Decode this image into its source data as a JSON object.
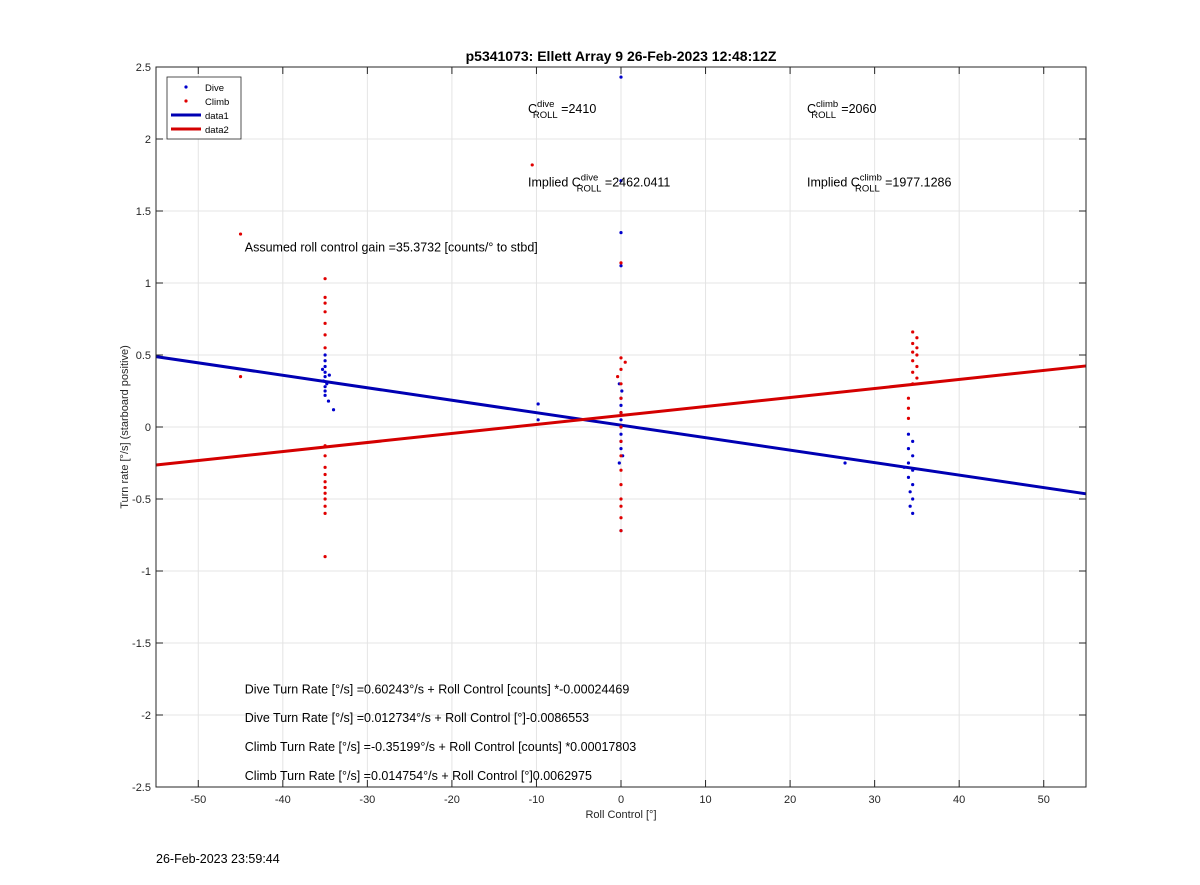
{
  "footer_timestamp": "26-Feb-2023 23:59:44",
  "chart_data": {
    "type": "scatter",
    "title": "p5341073: Ellett Array 9 26-Feb-2023 12:48:12Z",
    "xlabel": "Roll Control [°]",
    "ylabel": "Turn rate [°/s] (starboard positive)",
    "xlim": [
      -55,
      55
    ],
    "ylim": [
      -2.5,
      2.5
    ],
    "xticks": [
      -50,
      -40,
      -30,
      -20,
      -10,
      0,
      10,
      20,
      30,
      40,
      50
    ],
    "yticks": [
      -2.5,
      -2,
      -1.5,
      -1,
      -0.5,
      0,
      0.5,
      1,
      1.5,
      2,
      2.5
    ],
    "grid": true,
    "legend_position": "top-left",
    "legend": [
      {
        "label": "Dive",
        "kind": "marker",
        "color": "#0000cc"
      },
      {
        "label": "Climb",
        "kind": "marker",
        "color": "#e00000"
      },
      {
        "label": "data1",
        "kind": "line",
        "color": "#0000b3"
      },
      {
        "label": "data2",
        "kind": "line",
        "color": "#d40000"
      }
    ],
    "series": [
      {
        "name": "Dive",
        "kind": "scatter",
        "color": "#0000cc",
        "points": [
          [
            -35,
            0.5
          ],
          [
            -35,
            0.46
          ],
          [
            -35,
            0.42
          ],
          [
            -35,
            0.38
          ],
          [
            -35,
            0.35
          ],
          [
            -35.2,
            0.32
          ],
          [
            -34.8,
            0.3
          ],
          [
            -35,
            0.28
          ],
          [
            -35,
            0.25
          ],
          [
            -35,
            0.22
          ],
          [
            -34.6,
            0.18
          ],
          [
            -34,
            0.12
          ],
          [
            -35.3,
            0.4
          ],
          [
            -34.5,
            0.36
          ],
          [
            -9.8,
            0.16
          ],
          [
            -9.8,
            0.05
          ],
          [
            0,
            2.43
          ],
          [
            0,
            1.71
          ],
          [
            0,
            1.35
          ],
          [
            0,
            1.12
          ],
          [
            0,
            -0.72
          ],
          [
            -0.2,
            0.3
          ],
          [
            0.1,
            0.25
          ],
          [
            0,
            0.2
          ],
          [
            0,
            0.15
          ],
          [
            0,
            0.1
          ],
          [
            0,
            0.05
          ],
          [
            0,
            0.0
          ],
          [
            0,
            -0.05
          ],
          [
            0,
            -0.1
          ],
          [
            0,
            -0.15
          ],
          [
            0.2,
            -0.2
          ],
          [
            -0.2,
            -0.25
          ],
          [
            26.5,
            -0.25
          ],
          [
            34,
            -0.05
          ],
          [
            34.5,
            -0.1
          ],
          [
            34,
            -0.15
          ],
          [
            34.5,
            -0.2
          ],
          [
            34,
            -0.25
          ],
          [
            34.5,
            -0.3
          ],
          [
            34,
            -0.35
          ],
          [
            34.5,
            -0.4
          ],
          [
            34.2,
            -0.45
          ],
          [
            34.5,
            -0.5
          ],
          [
            34.2,
            -0.55
          ],
          [
            34.5,
            -0.6
          ],
          [
            33.5,
            -0.28
          ]
        ]
      },
      {
        "name": "Climb",
        "kind": "scatter",
        "color": "#e00000",
        "points": [
          [
            -45,
            1.34
          ],
          [
            -45,
            0.35
          ],
          [
            -35,
            1.03
          ],
          [
            -35,
            0.9
          ],
          [
            -35,
            0.86
          ],
          [
            -35,
            0.8
          ],
          [
            -35,
            0.72
          ],
          [
            -35,
            0.64
          ],
          [
            -35,
            0.55
          ],
          [
            -35,
            -0.13
          ],
          [
            -35,
            -0.2
          ],
          [
            -35,
            -0.28
          ],
          [
            -35,
            -0.33
          ],
          [
            -35,
            -0.38
          ],
          [
            -35,
            -0.42
          ],
          [
            -35,
            -0.46
          ],
          [
            -35,
            -0.5
          ],
          [
            -35,
            -0.55
          ],
          [
            -35,
            -0.6
          ],
          [
            -35,
            -0.9
          ],
          [
            -10.5,
            1.82
          ],
          [
            0,
            1.14
          ],
          [
            0,
            0.48
          ],
          [
            0,
            0.4
          ],
          [
            0,
            0.3
          ],
          [
            0,
            0.2
          ],
          [
            0,
            0.1
          ],
          [
            0,
            0.0
          ],
          [
            0,
            -0.1
          ],
          [
            0,
            -0.2
          ],
          [
            0,
            -0.3
          ],
          [
            0,
            -0.4
          ],
          [
            0,
            -0.5
          ],
          [
            0,
            -0.55
          ],
          [
            0,
            -0.63
          ],
          [
            0,
            -0.72
          ],
          [
            0.5,
            0.45
          ],
          [
            -0.4,
            0.35
          ],
          [
            34.5,
            0.66
          ],
          [
            35,
            0.62
          ],
          [
            34.5,
            0.58
          ],
          [
            35,
            0.55
          ],
          [
            34.5,
            0.52
          ],
          [
            35,
            0.5
          ],
          [
            34.5,
            0.46
          ],
          [
            35,
            0.42
          ],
          [
            34.5,
            0.38
          ],
          [
            35,
            0.34
          ],
          [
            34.5,
            0.3
          ],
          [
            34,
            0.2
          ],
          [
            34,
            0.13
          ],
          [
            34,
            0.06
          ]
        ]
      },
      {
        "name": "data1",
        "kind": "line",
        "color": "#0000b3",
        "x": [
          -55,
          55
        ],
        "y": [
          0.489,
          -0.464
        ]
      },
      {
        "name": "data2",
        "kind": "line",
        "color": "#d40000",
        "x": [
          -55,
          55
        ],
        "y": [
          -0.264,
          0.424
        ]
      }
    ],
    "annotations": [
      {
        "id": "cdive",
        "prefix": "C",
        "sup": "dive",
        "sub": "ROLL",
        "suffix": " =2410",
        "x": -11,
        "y": 2.18
      },
      {
        "id": "cclimb",
        "prefix": "C",
        "sup": "climb",
        "sub": "ROLL",
        "suffix": " =2060",
        "x": 22,
        "y": 2.18
      },
      {
        "id": "implied-dive",
        "prefix": "Implied C",
        "sup": "dive",
        "sub": "ROLL",
        "suffix": " =2462.0411",
        "x": -11,
        "y": 1.67
      },
      {
        "id": "implied-climb",
        "prefix": "Implied C",
        "sup": "climb",
        "sub": "ROLL",
        "suffix": " =1977.1286",
        "x": 22,
        "y": 1.67
      },
      {
        "id": "gain",
        "text": "Assumed roll control gain =35.3732 [counts/° to stbd]",
        "x": -44.5,
        "y": 1.22
      },
      {
        "id": "eq1",
        "text": "Dive Turn Rate [°/s] =0.60243°/s + Roll Control [counts] *-0.00024469",
        "x": -44.5,
        "y": -1.85
      },
      {
        "id": "eq2",
        "text": "Dive Turn Rate [°/s] =0.012734°/s + Roll Control [°]-0.0086553",
        "x": -44.5,
        "y": -2.05
      },
      {
        "id": "eq3",
        "text": "Climb Turn Rate [°/s] =-0.35199°/s + Roll Control [counts] *0.00017803",
        "x": -44.5,
        "y": -2.25
      },
      {
        "id": "eq4",
        "text": "Climb Turn Rate [°/s] =0.014754°/s + Roll Control [°]0.0062975",
        "x": -44.5,
        "y": -2.45
      }
    ]
  }
}
